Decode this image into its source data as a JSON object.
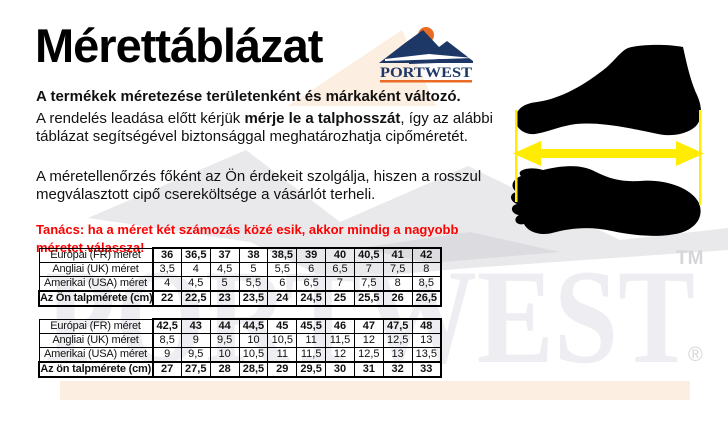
{
  "page": {
    "title": "Mérettáblázat"
  },
  "logo": {
    "brand": "PORTWEST"
  },
  "intro": {
    "p1": "A termékek méretezése területenként és márkaként változó.",
    "p2_parts": [
      "A rendelés leadása előtt kérjük ",
      "mérje le a talphosszát",
      ", így az alábbi táblázat segítségével biztonsággal meghatározhatja cipőméretét."
    ],
    "p3": "A méretellenőrzés főként az Ön érdekeit szolgálja, hiszen a rosszul megválasztott cipő csereköltsége a vásárlót terheli.",
    "advice": "Tanács: ha a méret két számozás közé esik, akkor mindig a nagyobb méretet válassza!"
  },
  "tables": [
    {
      "rows": [
        {
          "label": "Európai (FR) méret",
          "label_bold": false,
          "values_bold": true,
          "values": [
            "36",
            "36,5",
            "37",
            "38",
            "38,5",
            "39",
            "40",
            "40,5",
            "41",
            "42"
          ]
        },
        {
          "label": "Angliai (UK) méret",
          "label_bold": false,
          "values_bold": false,
          "values": [
            "3,5",
            "4",
            "4,5",
            "5",
            "5,5",
            "6",
            "6,5",
            "7",
            "7,5",
            "8"
          ]
        },
        {
          "label": "Amerikai (USA) méret",
          "label_bold": false,
          "values_bold": false,
          "values": [
            "4",
            "4,5",
            "5",
            "5,5",
            "6",
            "6,5",
            "7",
            "7,5",
            "8",
            "8,5"
          ]
        },
        {
          "label": "Az Ön talpmérete (cm)",
          "label_bold": true,
          "values_bold": true,
          "values": [
            "22",
            "22,5",
            "23",
            "23,5",
            "24",
            "24,5",
            "25",
            "25,5",
            "26",
            "26,5"
          ]
        }
      ]
    },
    {
      "rows": [
        {
          "label": "Európai (FR) méret",
          "label_bold": false,
          "values_bold": true,
          "values": [
            "42,5",
            "43",
            "44",
            "44,5",
            "45",
            "45,5",
            "46",
            "47",
            "47,5",
            "48"
          ]
        },
        {
          "label": "Angliai (UK) méret",
          "label_bold": false,
          "values_bold": false,
          "values": [
            "8,5",
            "9",
            "9,5",
            "10",
            "10,5",
            "11",
            "11,5",
            "12",
            "12,5",
            "13"
          ]
        },
        {
          "label": "Amerikai (USA) méret",
          "label_bold": false,
          "values_bold": false,
          "values": [
            "9",
            "9,5",
            "10",
            "10,5",
            "11",
            "11,5",
            "12",
            "12,5",
            "13",
            "13,5"
          ]
        },
        {
          "label": "Az ön talpmérete (cm)",
          "label_bold": true,
          "values_bold": true,
          "values": [
            "27",
            "27,5",
            "28",
            "28,5",
            "29",
            "29,5",
            "30",
            "31",
            "32",
            "33"
          ]
        }
      ]
    }
  ],
  "watermark": {
    "text": "PORTWEST",
    "tm": "TM",
    "registered": "®"
  },
  "icons": {
    "foot_side": "foot-side-silhouette-icon",
    "foot_sole": "foot-sole-silhouette-icon",
    "arrow": "measure-arrow-icon",
    "sun": "sun-icon",
    "mountains": "mountain-logo-icon"
  },
  "colors": {
    "navy": "#1d3767",
    "orange": "#e96b25",
    "red": "#ff0000",
    "yellow": "#ffec00",
    "wm": "#e9e9ec",
    "wm_dark": "#dcdce0",
    "wm_text": "#eeeef2",
    "wm_mark": "#d6d6da",
    "peach": "#fdeee2",
    "ink": "#111111"
  }
}
